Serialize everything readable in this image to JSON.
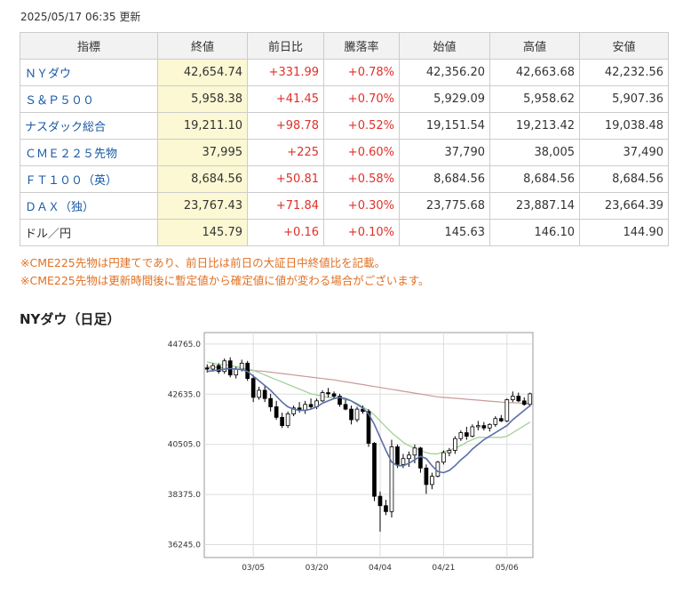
{
  "updated": "2025/05/17 06:35 更新",
  "table": {
    "headers": [
      "指標",
      "終値",
      "前日比",
      "騰落率",
      "始値",
      "高値",
      "安値"
    ],
    "rows": [
      {
        "name": "ＮＹダウ",
        "link": true,
        "close": "42,654.74",
        "change": "+331.99",
        "pct": "+0.78%",
        "open": "42,356.20",
        "high": "42,663.68",
        "low": "42,232.56"
      },
      {
        "name": "Ｓ＆Ｐ５００",
        "link": true,
        "close": "5,958.38",
        "change": "+41.45",
        "pct": "+0.70%",
        "open": "5,929.09",
        "high": "5,958.62",
        "low": "5,907.36"
      },
      {
        "name": "ナスダック総合",
        "link": true,
        "close": "19,211.10",
        "change": "+98.78",
        "pct": "+0.52%",
        "open": "19,151.54",
        "high": "19,213.42",
        "low": "19,038.48"
      },
      {
        "name": "ＣＭＥ２２５先物",
        "link": true,
        "close": "37,995",
        "change": "+225",
        "pct": "+0.60%",
        "open": "37,790",
        "high": "38,005",
        "low": "37,490"
      },
      {
        "name": "ＦＴ１００（英）",
        "link": true,
        "close": "8,684.56",
        "change": "+50.81",
        "pct": "+0.58%",
        "open": "8,684.56",
        "high": "8,684.56",
        "low": "8,684.56"
      },
      {
        "name": "ＤＡＸ（独）",
        "link": true,
        "close": "23,767.43",
        "change": "+71.84",
        "pct": "+0.30%",
        "open": "23,775.68",
        "high": "23,887.14",
        "low": "23,664.39"
      },
      {
        "name": "ドル／円",
        "link": false,
        "close": "145.79",
        "change": "+0.16",
        "pct": "+0.10%",
        "open": "145.63",
        "high": "146.10",
        "low": "144.90"
      }
    ]
  },
  "notes": [
    "※CME225先物は円建てであり、前日比は前日の大証日中終値比を記載。",
    "※CME225先物は更新時間後に暫定値から確定値に値が変わる場合がございます。"
  ],
  "chart_title": "NYダウ（日足）",
  "chart_data": {
    "type": "candlestick",
    "ylim": [
      35700,
      45250
    ],
    "yticks": [
      44765.0,
      42635.0,
      40505.0,
      38375.0,
      36245.0
    ],
    "ytick_labels": [
      "44765.0",
      "42635.0",
      "40505.0",
      "38375.0",
      "36245.0"
    ],
    "xtick_labels": [
      "03/05",
      "03/20",
      "04/04",
      "04/21",
      "05/06"
    ],
    "xtick_index": [
      8,
      19,
      30,
      41,
      52
    ],
    "candles": [
      [
        43750,
        43900,
        43550,
        43700
      ],
      [
        43700,
        43950,
        43600,
        43850
      ],
      [
        43850,
        43950,
        43500,
        43600
      ],
      [
        43600,
        44150,
        43500,
        44050
      ],
      [
        44050,
        44200,
        43350,
        43450
      ],
      [
        43450,
        43800,
        43300,
        43700
      ],
      [
        43700,
        44100,
        43600,
        43950
      ],
      [
        43950,
        44050,
        43200,
        43300
      ],
      [
        43300,
        43450,
        42300,
        42500
      ],
      [
        42500,
        42950,
        42400,
        42800
      ],
      [
        42800,
        43000,
        42300,
        42450
      ],
      [
        42450,
        42650,
        41900,
        42100
      ],
      [
        42100,
        42350,
        41550,
        41650
      ],
      [
        41650,
        41850,
        41200,
        41300
      ],
      [
        41300,
        41900,
        41200,
        41800
      ],
      [
        41800,
        42150,
        41700,
        42050
      ],
      [
        42050,
        42300,
        41850,
        41950
      ],
      [
        41950,
        42350,
        41800,
        42200
      ],
      [
        42200,
        42450,
        42000,
        42100
      ],
      [
        42100,
        42450,
        42000,
        42350
      ],
      [
        42350,
        42800,
        42300,
        42700
      ],
      [
        42700,
        42900,
        42500,
        42650
      ],
      [
        42650,
        42750,
        42450,
        42550
      ],
      [
        42550,
        42650,
        42100,
        42200
      ],
      [
        42200,
        42400,
        41950,
        42000
      ],
      [
        42000,
        42150,
        41350,
        41550
      ],
      [
        41550,
        42100,
        41450,
        42000
      ],
      [
        42000,
        42150,
        41800,
        41900
      ],
      [
        41900,
        42000,
        40400,
        40550
      ],
      [
        40550,
        40600,
        38100,
        38300
      ],
      [
        38300,
        38500,
        36800,
        37900
      ],
      [
        37900,
        38150,
        37500,
        37650
      ],
      [
        37650,
        40700,
        37400,
        40400
      ],
      [
        40400,
        40500,
        39500,
        39650
      ],
      [
        39650,
        40100,
        39500,
        39900
      ],
      [
        39900,
        40200,
        39550,
        40050
      ],
      [
        40050,
        40500,
        39700,
        40350
      ],
      [
        40350,
        40400,
        39300,
        39500
      ],
      [
        39500,
        39650,
        38400,
        38800
      ],
      [
        38800,
        39300,
        38600,
        39150
      ],
      [
        39150,
        39800,
        39100,
        39750
      ],
      [
        39750,
        40250,
        39650,
        40150
      ],
      [
        40150,
        40350,
        40000,
        40250
      ],
      [
        40250,
        40850,
        40100,
        40750
      ],
      [
        40750,
        41100,
        40650,
        41000
      ],
      [
        41000,
        41250,
        40700,
        40850
      ],
      [
        40850,
        41350,
        40800,
        41250
      ],
      [
        41250,
        41500,
        41100,
        41300
      ],
      [
        41300,
        41450,
        41100,
        41200
      ],
      [
        41200,
        41400,
        41050,
        41350
      ],
      [
        41350,
        41700,
        41250,
        41600
      ],
      [
        41600,
        41750,
        41450,
        41500
      ],
      [
        41500,
        42450,
        41450,
        42400
      ],
      [
        42400,
        42750,
        42300,
        42550
      ],
      [
        42550,
        42700,
        42300,
        42350
      ],
      [
        42350,
        42500,
        42150,
        42200
      ],
      [
        42200,
        42700,
        42100,
        42650
      ]
    ],
    "ma_short": [
      43600,
      43630,
      43660,
      43700,
      43720,
      43700,
      43680,
      43600,
      43400,
      43200,
      43000,
      42800,
      42550,
      42300,
      42100,
      42000,
      41950,
      41950,
      42000,
      42100,
      42250,
      42350,
      42450,
      42500,
      42450,
      42350,
      42200,
      42050,
      41800,
      41350,
      40800,
      40250,
      39750,
      39600,
      39600,
      39700,
      39850,
      40000,
      39900,
      39600,
      39350,
      39300,
      39400,
      39600,
      39850,
      40050,
      40300,
      40500,
      40700,
      40850,
      41000,
      41150,
      41300,
      41550,
      41750,
      41950,
      42150
    ],
    "ma_mid": [
      44000,
      43950,
      43900,
      43900,
      43850,
      43800,
      43750,
      43700,
      43650,
      43550,
      43450,
      43350,
      43250,
      43150,
      43050,
      42950,
      42850,
      42750,
      42650,
      42600,
      42550,
      42500,
      42500,
      42450,
      42400,
      42350,
      42250,
      42100,
      41950,
      41750,
      41500,
      41250,
      41000,
      40800,
      40600,
      40450,
      40350,
      40250,
      40150,
      40100,
      40100,
      40200,
      40250,
      40350,
      40450,
      40600,
      40700,
      40800,
      40800,
      40800,
      40800,
      40800,
      40850,
      41000,
      41150,
      41300,
      41450
    ],
    "ma_long": [
      43800,
      43780,
      43760,
      43750,
      43730,
      43700,
      43680,
      43660,
      43640,
      43620,
      43600,
      43570,
      43540,
      43510,
      43480,
      43450,
      43420,
      43390,
      43360,
      43330,
      43300,
      43270,
      43240,
      43200,
      43160,
      43120,
      43080,
      43040,
      43000,
      42960,
      42920,
      42880,
      42840,
      42800,
      42760,
      42720,
      42680,
      42640,
      42600,
      42560,
      42520,
      42500,
      42480,
      42460,
      42440,
      42420,
      42400,
      42380,
      42360,
      42340,
      42320,
      42300,
      42280,
      42270,
      42260,
      42250,
      42240
    ]
  },
  "colors": {
    "link": "#1a5aa6",
    "up": "#e0302a",
    "close_bg": "#fbf8d3",
    "note": "#e07023",
    "ma_short": "#5a6fa8",
    "ma_mid": "#9ccf8f",
    "ma_long": "#c99a9a"
  }
}
